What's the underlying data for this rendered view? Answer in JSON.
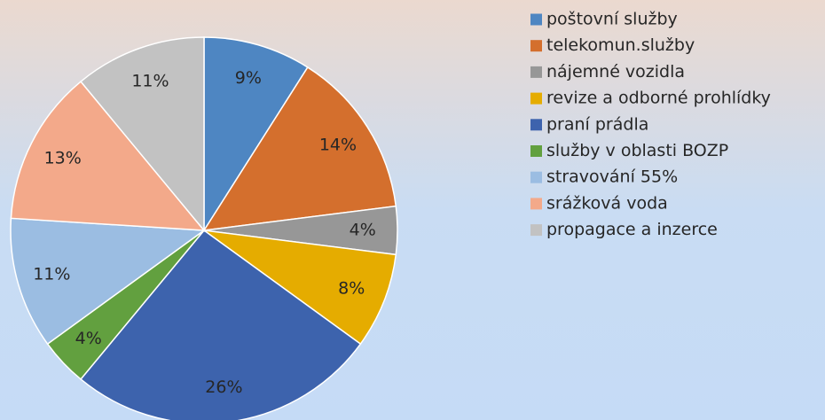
{
  "chart_data": {
    "type": "pie",
    "categories": [
      "poštovní služby",
      "telekomun.služby",
      "nájemné vozidla",
      "revize a odborné prohlídky",
      "praní prádla",
      "služby v oblasti BOZP",
      "stravování 55%",
      "srážková voda",
      "propagace a inzerce"
    ],
    "values": [
      9,
      14,
      4,
      8,
      26,
      4,
      11,
      13,
      11
    ],
    "value_labels": [
      "9%",
      "14%",
      "4%",
      "8%",
      "26%",
      "4%",
      "11%",
      "13%",
      "11%"
    ],
    "colors": [
      "#4e86c2",
      "#d46f2d",
      "#979797",
      "#e5ac00",
      "#3d63ad",
      "#62a03f",
      "#9bbde2",
      "#f3a98a",
      "#c2c2c2"
    ],
    "legend": "right"
  }
}
